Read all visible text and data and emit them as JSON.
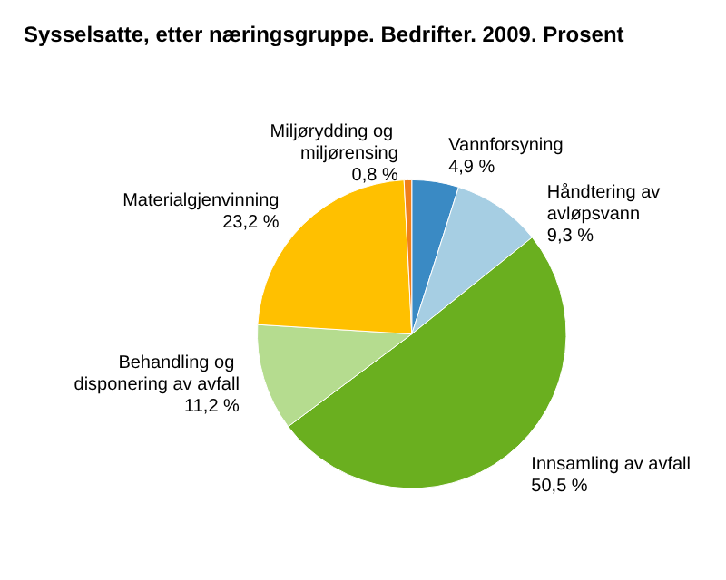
{
  "chart_data": {
    "type": "pie",
    "title": "Sysselsatte, etter næringsgruppe. Bedrifter. 2009. Prosent",
    "categories": [
      "Vannforsyning",
      "Håndtering av avløpsvann",
      "Innsamling av avfall",
      "Behandling og disponering av avfall",
      "Materialgjenvinning",
      "Miljørydding og miljørensing"
    ],
    "values": [
      4.9,
      9.3,
      50.5,
      11.2,
      23.2,
      0.8
    ],
    "value_labels": [
      "4,9 %",
      "9,3 %",
      "50,5 %",
      "11,2 %",
      "23,2 %",
      "0,8 %"
    ],
    "colors": [
      "#3a8ac4",
      "#a6cee3",
      "#6aaf1f",
      "#b5dc8f",
      "#ffc000",
      "#f07f1a"
    ],
    "legend": false
  }
}
